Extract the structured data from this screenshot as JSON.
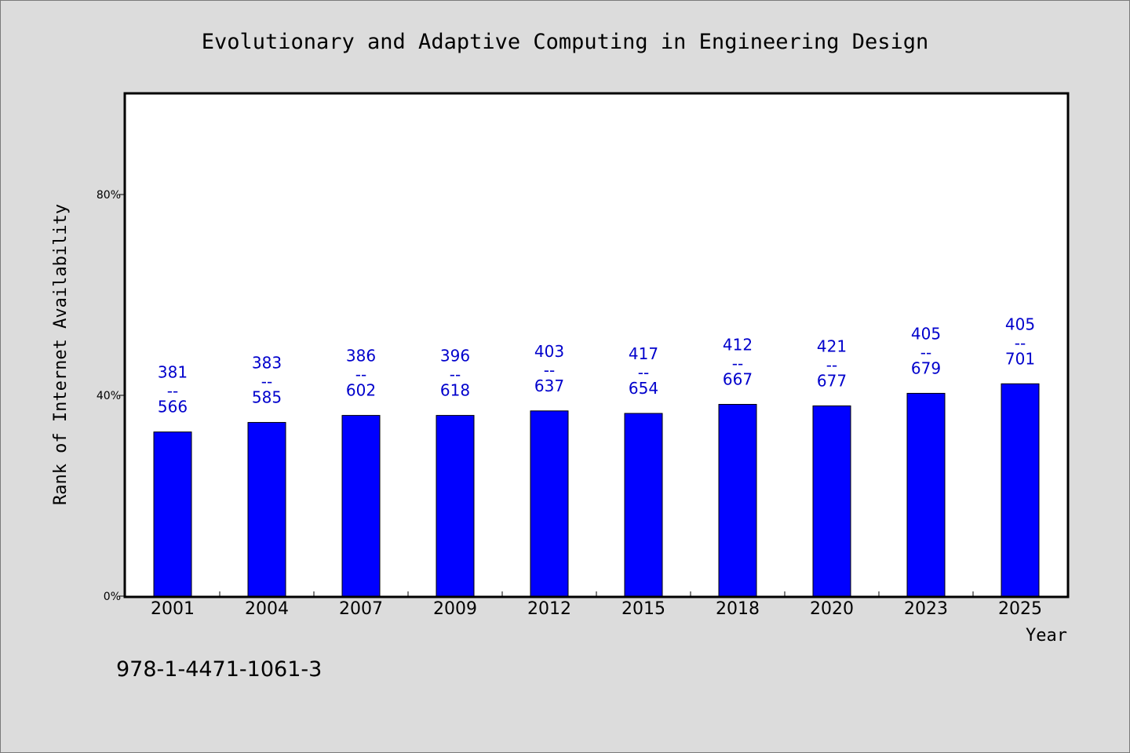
{
  "chart_data": {
    "type": "bar",
    "title": "Evolutionary and Adaptive Computing in Engineering Design",
    "xlabel": "Year",
    "ylabel": "Rank of Internet Availability",
    "categories": [
      "2001",
      "2004",
      "2007",
      "2009",
      "2012",
      "2015",
      "2018",
      "2020",
      "2023",
      "2025"
    ],
    "values": [
      32.7,
      34.6,
      36.0,
      36.0,
      36.9,
      36.4,
      38.2,
      37.9,
      40.4,
      42.3
    ],
    "ylim": [
      0,
      100
    ],
    "yticks": [
      {
        "value": 0,
        "label": "0%"
      },
      {
        "value": 40,
        "label": "40%"
      },
      {
        "value": 80,
        "label": "80%"
      }
    ],
    "bar_labels": [
      {
        "top": "381",
        "mid": "--",
        "bottom": "566"
      },
      {
        "top": "383",
        "mid": "--",
        "bottom": "585"
      },
      {
        "top": "386",
        "mid": "--",
        "bottom": "602"
      },
      {
        "top": "396",
        "mid": "--",
        "bottom": "618"
      },
      {
        "top": "403",
        "mid": "--",
        "bottom": "637"
      },
      {
        "top": "417",
        "mid": "--",
        "bottom": "654"
      },
      {
        "top": "412",
        "mid": "--",
        "bottom": "667"
      },
      {
        "top": "421",
        "mid": "--",
        "bottom": "677"
      },
      {
        "top": "405",
        "mid": "--",
        "bottom": "679"
      },
      {
        "top": "405",
        "mid": "--",
        "bottom": "701"
      }
    ],
    "bar_color": "#0000ff",
    "label_color": "#0000cc",
    "grid": false,
    "legend": "none"
  },
  "footer": {
    "isbn": "978-1-4471-1061-3"
  }
}
